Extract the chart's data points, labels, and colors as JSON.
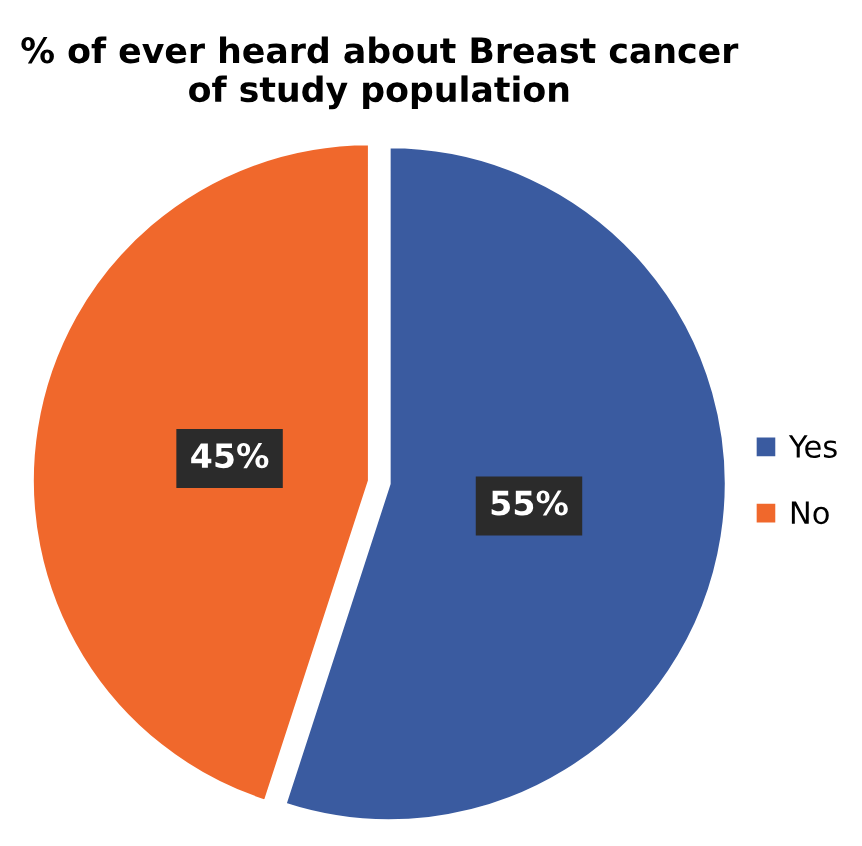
{
  "chart_data": {
    "type": "pie",
    "title": "% of ever heard about Breast cancer\nof study population",
    "categories": [
      "Yes",
      "No"
    ],
    "values": [
      55,
      45
    ],
    "colors": [
      "#3a5ba0",
      "#f0682c"
    ],
    "value_labels": [
      "55%",
      "45%"
    ],
    "legend": "right"
  }
}
